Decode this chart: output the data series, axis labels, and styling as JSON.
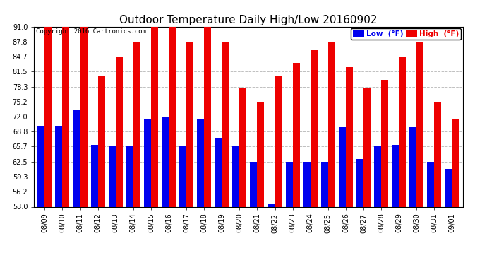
{
  "title": "Outdoor Temperature Daily High/Low 20160902",
  "copyright": "Copyright 2016 Cartronics.com",
  "dates": [
    "08/09",
    "08/10",
    "08/11",
    "08/12",
    "08/13",
    "08/14",
    "08/15",
    "08/16",
    "08/17",
    "08/18",
    "08/19",
    "08/20",
    "08/21",
    "08/22",
    "08/23",
    "08/24",
    "08/25",
    "08/26",
    "08/27",
    "08/28",
    "08/29",
    "08/30",
    "08/31",
    "09/01"
  ],
  "highs": [
    91.0,
    91.0,
    91.0,
    80.6,
    84.7,
    87.8,
    91.0,
    91.0,
    87.8,
    91.0,
    87.8,
    77.9,
    75.2,
    80.6,
    83.3,
    86.0,
    87.8,
    82.4,
    77.9,
    79.7,
    84.7,
    87.8,
    75.2,
    71.6
  ],
  "lows": [
    70.0,
    70.0,
    73.4,
    66.0,
    65.7,
    65.7,
    71.6,
    72.0,
    65.7,
    71.6,
    67.5,
    65.7,
    62.5,
    53.6,
    62.5,
    62.5,
    62.5,
    69.8,
    63.0,
    65.7,
    66.0,
    69.8,
    62.5,
    61.0
  ],
  "ymin": 53.0,
  "ymax": 91.0,
  "yticks": [
    53.0,
    56.2,
    59.3,
    62.5,
    65.7,
    68.8,
    72.0,
    75.2,
    78.3,
    81.5,
    84.7,
    87.8,
    91.0
  ],
  "low_color": "#0000ee",
  "high_color": "#ee0000",
  "bg_color": "#ffffff",
  "grid_color": "#c0c0c0",
  "bar_width": 0.4,
  "title_fontsize": 11,
  "tick_fontsize": 7,
  "copyright_fontsize": 6.5,
  "legend_fontsize": 7.5
}
